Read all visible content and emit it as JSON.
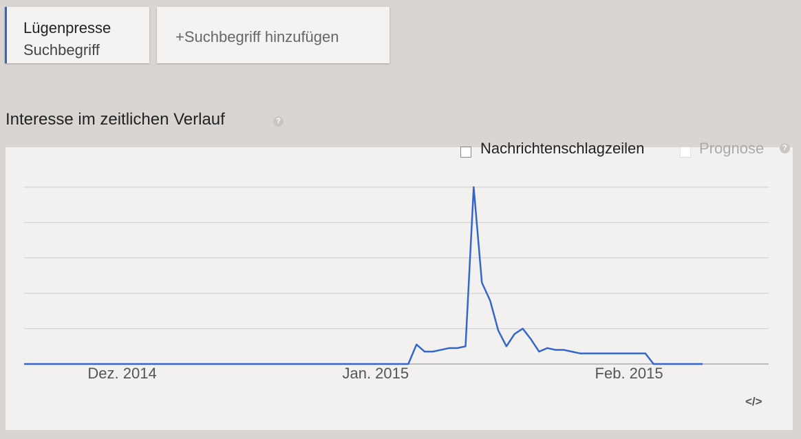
{
  "search_terms": {
    "term": "Lügenpresse",
    "term_kind": "Suchbegriff",
    "add_button": "+Suchbegriff hinzufügen"
  },
  "section_title": "Interesse im zeitlichen Verlauf",
  "help_icon": "?",
  "options": {
    "news": "Nachrichtenschlagzeilen",
    "forecast": "Prognose"
  },
  "embed_icon": "</>",
  "chart_data": {
    "type": "line",
    "color": "#3366cc",
    "grid": true,
    "ylim": [
      0,
      100
    ],
    "yticks": [
      0,
      20,
      40,
      60,
      80,
      100
    ],
    "categories": [
      null,
      null,
      null,
      null,
      null,
      null,
      null,
      null,
      null,
      null,
      null,
      null,
      "Dez. 2014",
      null,
      null,
      null,
      null,
      null,
      null,
      null,
      null,
      null,
      null,
      null,
      null,
      null,
      null,
      null,
      null,
      null,
      null,
      null,
      null,
      null,
      null,
      null,
      null,
      null,
      null,
      null,
      null,
      null,
      null,
      "Jan. 2015",
      null,
      null,
      null,
      null,
      null,
      null,
      null,
      null,
      null,
      null,
      null,
      null,
      null,
      null,
      null,
      null,
      null,
      null,
      null,
      null,
      null,
      null,
      null,
      null,
      null,
      null,
      null,
      null,
      null,
      null,
      "Feb. 2015",
      null,
      null,
      null,
      null,
      null,
      null,
      null,
      null,
      null
    ],
    "values": [
      0,
      0,
      0,
      0,
      0,
      0,
      0,
      0,
      0,
      0,
      0,
      0,
      0,
      0,
      0,
      0,
      0,
      0,
      0,
      0,
      0,
      0,
      0,
      0,
      0,
      0,
      0,
      0,
      0,
      0,
      0,
      0,
      0,
      0,
      0,
      0,
      0,
      0,
      0,
      0,
      0,
      0,
      0,
      0,
      0,
      0,
      0,
      0,
      11,
      7,
      7,
      8,
      9,
      9,
      10,
      100,
      46,
      36,
      19,
      10,
      17,
      20,
      14,
      7,
      9,
      8,
      8,
      7,
      6,
      6,
      6,
      6,
      6,
      6,
      6,
      6,
      6,
      0,
      0,
      0,
      0,
      0,
      0,
      0
    ]
  }
}
